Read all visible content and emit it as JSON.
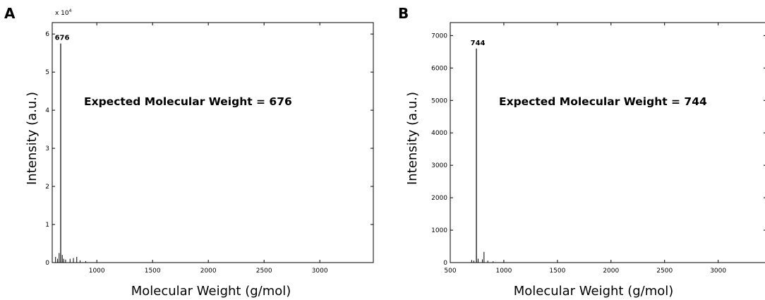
{
  "chart_data": [
    {
      "panel_label": "A",
      "type": "bar",
      "ylabel": "Intensity (a.u.)",
      "xlabel": "Molecular Weight (g/mol)",
      "annotation": "Expected Molecular Weight = 676",
      "y_multiplier": "x 10",
      "y_multiplier_exp": "4",
      "xlim": [
        600,
        3480
      ],
      "ylim": [
        0,
        6.3
      ],
      "xticks": [
        1000,
        1500,
        2000,
        2500,
        3000
      ],
      "yticks": [
        0,
        1,
        2,
        3,
        4,
        5,
        6
      ],
      "peak_label": "676",
      "peaks": {
        "x": [
          630,
          648,
          662,
          676,
          690,
          702,
          720,
          760,
          790,
          820,
          850,
          900
        ],
        "y": [
          0.15,
          0.1,
          0.25,
          5.75,
          0.2,
          0.1,
          0.08,
          0.1,
          0.12,
          0.15,
          0.06,
          0.04
        ]
      }
    },
    {
      "panel_label": "B",
      "type": "bar",
      "ylabel": "Intensity (a.u.)",
      "xlabel": "Molecular Weight (g/mol)",
      "annotation": "Expected Molecular Weight = 744",
      "xlim": [
        500,
        3450
      ],
      "ylim": [
        0,
        7400
      ],
      "xticks": [
        500,
        1000,
        1500,
        2000,
        2500,
        3000
      ],
      "yticks": [
        0,
        1000,
        2000,
        3000,
        4000,
        5000,
        6000,
        7000
      ],
      "peak_label": "744",
      "peaks": {
        "x": [
          700,
          720,
          744,
          760,
          800,
          815,
          850,
          900,
          1000
        ],
        "y": [
          80,
          60,
          6600,
          120,
          100,
          330,
          60,
          40,
          30
        ]
      }
    }
  ]
}
